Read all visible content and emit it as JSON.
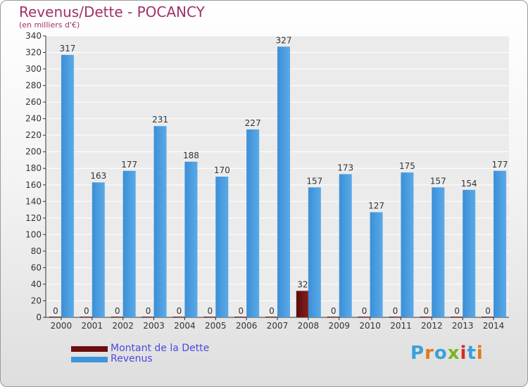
{
  "header": {
    "title": "Revenus/Dette - POCANCY",
    "subtitle": "(en milliers d'€)"
  },
  "legend": [
    {
      "label": "Montant de la Dette",
      "color": "#6b0f0f"
    },
    {
      "label": "Revenus",
      "color": "#3f95db"
    }
  ],
  "logo": {
    "text": "Proxiti",
    "colors": [
      "#3aa0d8",
      "#e07a1a",
      "#3aa0d8",
      "#7ab51d",
      "#d42a2a",
      "#3aa0d8",
      "#e07a1a"
    ]
  },
  "chart_data": {
    "type": "bar",
    "title": "Revenus/Dette - POCANCY",
    "subtitle": "(en milliers d'€)",
    "categories": [
      "2000",
      "2001",
      "2002",
      "2003",
      "2004",
      "2005",
      "2006",
      "2007",
      "2008",
      "2009",
      "2010",
      "2011",
      "2012",
      "2013",
      "2014"
    ],
    "series": [
      {
        "name": "Montant de la Dette",
        "color": "#6b0f0f",
        "values": [
          0,
          0,
          0,
          0,
          0,
          0,
          0,
          0,
          32,
          0,
          0,
          0,
          0,
          0,
          0
        ]
      },
      {
        "name": "Revenus",
        "color": "#3f95db",
        "values": [
          317,
          163,
          177,
          231,
          188,
          170,
          227,
          327,
          157,
          173,
          127,
          175,
          157,
          154,
          177
        ]
      }
    ],
    "ylim": [
      0,
      340
    ],
    "yticks": [
      0,
      20,
      40,
      60,
      80,
      100,
      120,
      140,
      160,
      180,
      200,
      220,
      240,
      260,
      280,
      300,
      320,
      340
    ],
    "grid": true,
    "legend_position": "bottom-left"
  }
}
